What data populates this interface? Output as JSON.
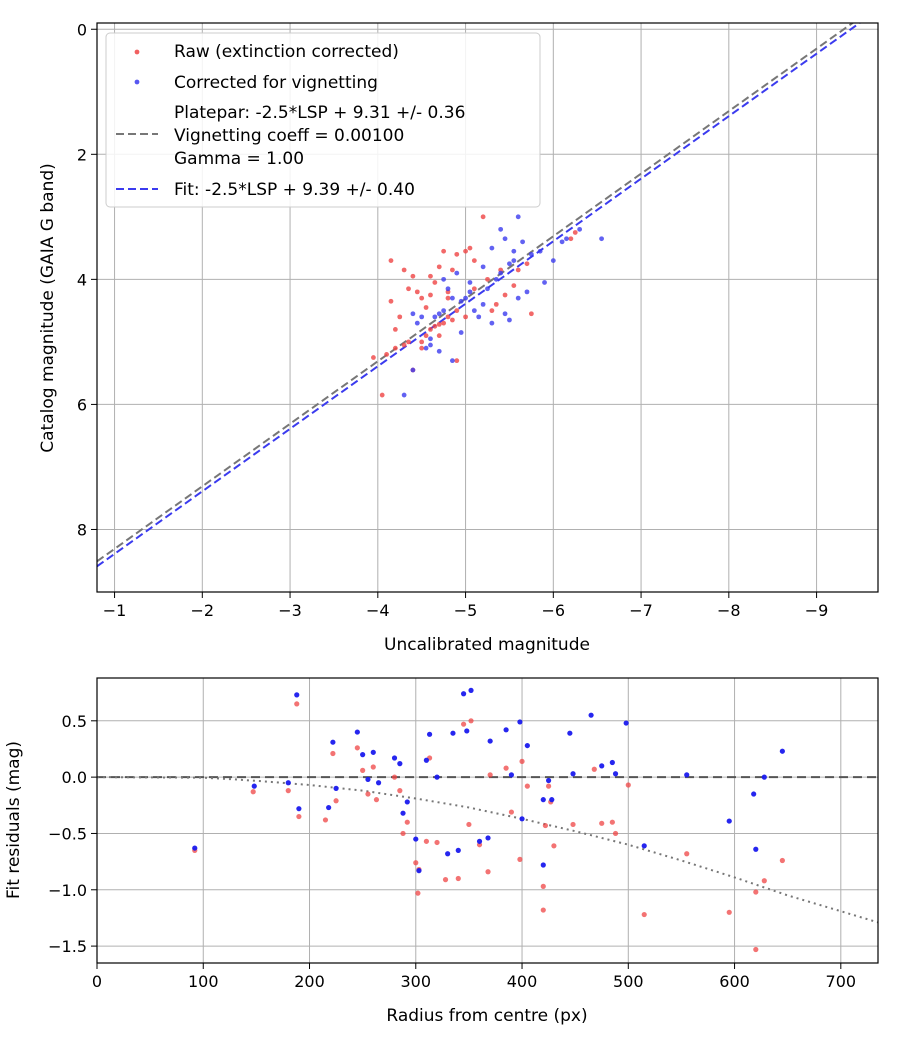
{
  "chart_data": [
    {
      "type": "scatter",
      "xlabel": "Uncalibrated magnitude",
      "ylabel": "Catalog magnitude (GAIA G band)",
      "xlim": [
        -0.8,
        -9.7
      ],
      "ylim": [
        9.0,
        -0.1
      ],
      "x_inverted": true,
      "y_inverted": true,
      "xticks": [
        -1,
        -2,
        -3,
        -4,
        -5,
        -6,
        -7,
        -8,
        -9
      ],
      "xtick_labels": [
        "−1",
        "−2",
        "−3",
        "−4",
        "−5",
        "−6",
        "−7",
        "−8",
        "−9"
      ],
      "yticks": [
        0,
        2,
        4,
        6,
        8
      ],
      "ytick_labels": [
        "0",
        "2",
        "4",
        "6",
        "8"
      ],
      "grid": true,
      "legend_position": "top-left",
      "legend": [
        {
          "label": "Raw (extinction corrected)",
          "kind": "marker",
          "color": "#ef4444"
        },
        {
          "label": "Corrected for vignetting",
          "kind": "marker",
          "color": "#3b3bef"
        },
        {
          "label_lines": [
            "Platepar: -2.5*LSP + 9.31 +/- 0.36",
            "Vignetting coeff = 0.00100",
            "Gamma = 1.00"
          ],
          "kind": "dashed",
          "color": "#777777"
        },
        {
          "label": "Fit: -2.5*LSP + 9.39 +/- 0.40",
          "kind": "dashed",
          "color": "#3b3bef"
        }
      ],
      "lines": [
        {
          "name": "Platepar",
          "slope": 1,
          "intercept": 9.31,
          "color": "#777777",
          "style": "dashed"
        },
        {
          "name": "Fit",
          "slope": 1,
          "intercept": 9.39,
          "color": "#3b3bef",
          "style": "dashed"
        }
      ],
      "series": [
        {
          "name": "Raw (extinction corrected)",
          "color": "#ef4444",
          "points": [
            [
              -4.05,
              5.85
            ],
            [
              -3.95,
              5.25
            ],
            [
              -4.1,
              5.2
            ],
            [
              -4.2,
              5.1
            ],
            [
              -4.3,
              5.05
            ],
            [
              -4.35,
              5.0
            ],
            [
              -4.4,
              5.45
            ],
            [
              -4.5,
              5.0
            ],
            [
              -4.55,
              4.9
            ],
            [
              -4.6,
              4.8
            ],
            [
              -4.65,
              4.75
            ],
            [
              -4.7,
              4.72
            ],
            [
              -4.75,
              4.7
            ],
            [
              -4.8,
              4.6
            ],
            [
              -4.85,
              4.65
            ],
            [
              -4.9,
              4.5
            ],
            [
              -4.2,
              4.8
            ],
            [
              -4.25,
              4.6
            ],
            [
              -4.15,
              4.35
            ],
            [
              -4.35,
              4.15
            ],
            [
              -4.45,
              4.2
            ],
            [
              -4.5,
              4.3
            ],
            [
              -4.6,
              4.25
            ],
            [
              -4.65,
              4.05
            ],
            [
              -4.8,
              4.2
            ],
            [
              -4.7,
              3.8
            ],
            [
              -4.85,
              3.85
            ],
            [
              -4.75,
              3.55
            ],
            [
              -4.9,
              3.6
            ],
            [
              -5.0,
              3.55
            ],
            [
              -5.05,
              3.5
            ],
            [
              -4.3,
              3.85
            ],
            [
              -4.15,
              3.7
            ],
            [
              -5.2,
              3.0
            ],
            [
              -5.1,
              3.7
            ],
            [
              -5.25,
              4.0
            ],
            [
              -5.35,
              4.4
            ],
            [
              -5.45,
              4.25
            ],
            [
              -5.55,
              4.1
            ],
            [
              -5.6,
              3.85
            ],
            [
              -5.7,
              3.75
            ],
            [
              -5.75,
              4.55
            ],
            [
              -6.2,
              3.35
            ],
            [
              -6.25,
              3.25
            ],
            [
              -4.6,
              3.95
            ],
            [
              -4.8,
              4.3
            ],
            [
              -4.9,
              5.3
            ],
            [
              -5.0,
              4.6
            ],
            [
              -5.3,
              4.5
            ],
            [
              -5.1,
              4.15
            ],
            [
              -4.7,
              4.9
            ],
            [
              -4.55,
              4.45
            ],
            [
              -4.4,
              3.95
            ],
            [
              -5.4,
              3.85
            ],
            [
              -4.5,
              5.1
            ]
          ]
        },
        {
          "name": "Corrected for vignetting",
          "color": "#3b3bef",
          "points": [
            [
              -4.3,
              5.85
            ],
            [
              -4.4,
              5.45
            ],
            [
              -4.55,
              5.1
            ],
            [
              -4.6,
              4.95
            ],
            [
              -4.7,
              5.15
            ],
            [
              -4.85,
              5.3
            ],
            [
              -4.95,
              4.85
            ],
            [
              -4.65,
              4.6
            ],
            [
              -4.75,
              4.5
            ],
            [
              -4.85,
              4.3
            ],
            [
              -4.95,
              4.35
            ],
            [
              -5.05,
              4.2
            ],
            [
              -5.1,
              4.5
            ],
            [
              -5.2,
              4.4
            ],
            [
              -5.25,
              4.15
            ],
            [
              -5.35,
              4.0
            ],
            [
              -5.4,
              3.9
            ],
            [
              -5.5,
              3.75
            ],
            [
              -5.6,
              4.3
            ],
            [
              -5.7,
              4.2
            ],
            [
              -5.5,
              4.65
            ],
            [
              -5.3,
              4.7
            ],
            [
              -5.55,
              3.55
            ],
            [
              -5.65,
              3.4
            ],
            [
              -5.75,
              3.6
            ],
            [
              -5.85,
              3.55
            ],
            [
              -5.9,
              4.05
            ],
            [
              -6.0,
              3.7
            ],
            [
              -6.1,
              3.4
            ],
            [
              -6.15,
              3.35
            ],
            [
              -6.3,
              3.2
            ],
            [
              -6.55,
              3.35
            ],
            [
              -5.6,
              3.0
            ],
            [
              -5.3,
              3.5
            ],
            [
              -5.4,
              3.2
            ],
            [
              -5.45,
              3.35
            ],
            [
              -5.15,
              4.6
            ],
            [
              -5.0,
              4.3
            ],
            [
              -4.9,
              3.9
            ],
            [
              -4.8,
              4.15
            ],
            [
              -4.7,
              4.55
            ],
            [
              -4.5,
              4.6
            ],
            [
              -4.4,
              4.55
            ],
            [
              -4.45,
              4.7
            ],
            [
              -5.05,
              4.05
            ],
            [
              -5.2,
              3.8
            ],
            [
              -4.6,
              5.05
            ],
            [
              -4.75,
              4.0
            ],
            [
              -5.45,
              4.55
            ],
            [
              -5.55,
              3.7
            ]
          ]
        }
      ]
    },
    {
      "type": "scatter",
      "xlabel": "Radius from centre (px)",
      "ylabel": "Fit residuals (mag)",
      "xlim": [
        0,
        735
      ],
      "ylim": [
        -1.65,
        0.88
      ],
      "xticks": [
        0,
        100,
        200,
        300,
        400,
        500,
        600,
        700
      ],
      "xtick_labels": [
        "0",
        "100",
        "200",
        "300",
        "400",
        "500",
        "600",
        "700"
      ],
      "yticks": [
        0.5,
        0.0,
        -0.5,
        -1.0,
        -1.5
      ],
      "ytick_labels": [
        "0.5",
        "0.0",
        "−0.5",
        "−1.0",
        "−1.5"
      ],
      "grid": true,
      "curves": [
        {
          "name": "zero",
          "color": "#555555",
          "style": "dashed",
          "points": [
            [
              0,
              0
            ],
            [
              735,
              0
            ]
          ]
        },
        {
          "name": "vignetting",
          "color": "#777777",
          "style": "dotted",
          "points": [
            [
              0,
              0
            ],
            [
              100,
              -0.005
            ],
            [
              130,
              -0.02
            ],
            [
              160,
              -0.04
            ],
            [
              200,
              -0.07
            ],
            [
              250,
              -0.12
            ],
            [
              300,
              -0.19
            ],
            [
              350,
              -0.27
            ],
            [
              400,
              -0.37
            ],
            [
              450,
              -0.48
            ],
            [
              500,
              -0.6
            ],
            [
              550,
              -0.74
            ],
            [
              600,
              -0.89
            ],
            [
              650,
              -1.05
            ],
            [
              700,
              -1.19
            ],
            [
              735,
              -1.29
            ]
          ]
        }
      ],
      "series": [
        {
          "name": "Raw",
          "color": "#ef4444",
          "points": [
            [
              92,
              -0.65
            ],
            [
              147,
              -0.13
            ],
            [
              180,
              -0.12
            ],
            [
              188,
              0.65
            ],
            [
              190,
              -0.35
            ],
            [
              215,
              -0.38
            ],
            [
              222,
              0.21
            ],
            [
              225,
              -0.21
            ],
            [
              245,
              0.26
            ],
            [
              250,
              0.06
            ],
            [
              255,
              -0.15
            ],
            [
              260,
              0.09
            ],
            [
              263,
              -0.2
            ],
            [
              280,
              0.0
            ],
            [
              285,
              -0.12
            ],
            [
              288,
              -0.5
            ],
            [
              292,
              -0.4
            ],
            [
              300,
              -0.76
            ],
            [
              302,
              -1.03
            ],
            [
              303,
              -0.82
            ],
            [
              310,
              -0.57
            ],
            [
              313,
              0.17
            ],
            [
              320,
              -0.58
            ],
            [
              328,
              -0.91
            ],
            [
              340,
              -0.9
            ],
            [
              345,
              0.47
            ],
            [
              350,
              -0.42
            ],
            [
              352,
              0.5
            ],
            [
              360,
              -0.6
            ],
            [
              368,
              -0.84
            ],
            [
              370,
              0.02
            ],
            [
              385,
              0.08
            ],
            [
              390,
              -0.31
            ],
            [
              398,
              -0.73
            ],
            [
              400,
              0.14
            ],
            [
              405,
              -0.08
            ],
            [
              420,
              -1.18
            ],
            [
              420,
              -0.97
            ],
            [
              422,
              -0.43
            ],
            [
              425,
              -0.08
            ],
            [
              427,
              -0.22
            ],
            [
              430,
              -0.61
            ],
            [
              448,
              -0.42
            ],
            [
              468,
              0.07
            ],
            [
              475,
              -0.41
            ],
            [
              485,
              -0.4
            ],
            [
              488,
              -0.5
            ],
            [
              500,
              -0.07
            ],
            [
              515,
              -1.22
            ],
            [
              555,
              -0.68
            ],
            [
              595,
              -1.2
            ],
            [
              620,
              -1.53
            ],
            [
              620,
              -1.02
            ],
            [
              628,
              -0.92
            ],
            [
              645,
              -0.74
            ]
          ]
        },
        {
          "name": "Corrected",
          "color": "#1a1aee",
          "points": [
            [
              92,
              -0.63
            ],
            [
              148,
              -0.08
            ],
            [
              180,
              -0.05
            ],
            [
              188,
              0.73
            ],
            [
              190,
              -0.28
            ],
            [
              218,
              -0.27
            ],
            [
              222,
              0.31
            ],
            [
              225,
              -0.1
            ],
            [
              245,
              0.4
            ],
            [
              250,
              0.2
            ],
            [
              255,
              -0.02
            ],
            [
              260,
              0.22
            ],
            [
              265,
              -0.05
            ],
            [
              280,
              0.17
            ],
            [
              285,
              0.12
            ],
            [
              288,
              -0.32
            ],
            [
              292,
              -0.22
            ],
            [
              300,
              -0.55
            ],
            [
              303,
              -0.83
            ],
            [
              310,
              0.15
            ],
            [
              313,
              0.38
            ],
            [
              320,
              0.0
            ],
            [
              330,
              -0.68
            ],
            [
              335,
              0.39
            ],
            [
              340,
              -0.65
            ],
            [
              345,
              0.74
            ],
            [
              348,
              0.41
            ],
            [
              352,
              0.77
            ],
            [
              360,
              -0.57
            ],
            [
              368,
              -0.54
            ],
            [
              370,
              0.32
            ],
            [
              385,
              0.42
            ],
            [
              390,
              0.02
            ],
            [
              398,
              0.49
            ],
            [
              400,
              -0.37
            ],
            [
              405,
              0.28
            ],
            [
              420,
              -0.2
            ],
            [
              420,
              -0.78
            ],
            [
              425,
              -0.03
            ],
            [
              428,
              -0.2
            ],
            [
              445,
              0.39
            ],
            [
              448,
              0.03
            ],
            [
              465,
              0.55
            ],
            [
              475,
              0.1
            ],
            [
              485,
              0.13
            ],
            [
              488,
              0.03
            ],
            [
              498,
              0.48
            ],
            [
              515,
              -0.61
            ],
            [
              555,
              0.02
            ],
            [
              595,
              -0.39
            ],
            [
              618,
              -0.15
            ],
            [
              620,
              -0.64
            ],
            [
              628,
              0.0
            ],
            [
              645,
              0.23
            ]
          ]
        }
      ]
    }
  ]
}
